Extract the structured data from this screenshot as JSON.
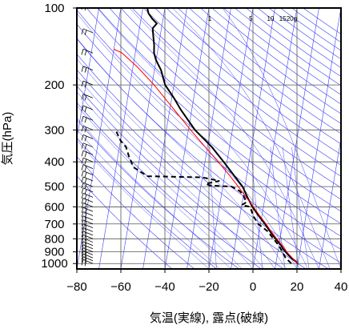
{
  "chart_data": {
    "type": "line",
    "title": "",
    "xlabel": "気温(実線), 露点(破線)",
    "ylabel": "気圧(hPa)",
    "xlim": [
      -80,
      40
    ],
    "ylim_hpa": [
      1050,
      100
    ],
    "y_scale": "log",
    "x_ticks": [
      {
        "value": -80,
        "label": "−80"
      },
      {
        "value": -60,
        "label": "−60"
      },
      {
        "value": -40,
        "label": "−40"
      },
      {
        "value": -20,
        "label": "−20"
      },
      {
        "value": 0,
        "label": "0"
      },
      {
        "value": 20,
        "label": "20"
      },
      {
        "value": 40,
        "label": "40"
      }
    ],
    "y_ticks": [
      {
        "value": 100,
        "label": "100"
      },
      {
        "value": 200,
        "label": "200"
      },
      {
        "value": 300,
        "label": "300"
      },
      {
        "value": 400,
        "label": "400"
      },
      {
        "value": 500,
        "label": "500"
      },
      {
        "value": 600,
        "label": "600"
      },
      {
        "value": 700,
        "label": "700"
      },
      {
        "value": 800,
        "label": "800"
      },
      {
        "value": 900,
        "label": "900"
      },
      {
        "value": 1000,
        "label": "1000"
      }
    ],
    "mixing_ratio_labels": [
      {
        "value": 1,
        "label": "1"
      },
      {
        "value": 5,
        "label": "5"
      },
      {
        "value": 10,
        "label": "10"
      },
      {
        "value": 15,
        "label": "15"
      },
      {
        "value": 20,
        "label": "20g"
      }
    ],
    "series": [
      {
        "kind": "temperature",
        "style": "solid",
        "color": "#000000",
        "points": [
          {
            "p": 1000,
            "t": 20
          },
          {
            "p": 975,
            "t": 18.5
          },
          {
            "p": 950,
            "t": 16.5
          },
          {
            "p": 925,
            "t": 15
          },
          {
            "p": 900,
            "t": 13.5
          },
          {
            "p": 875,
            "t": 12
          },
          {
            "p": 850,
            "t": 11
          },
          {
            "p": 800,
            "t": 8
          },
          {
            "p": 750,
            "t": 5
          },
          {
            "p": 700,
            "t": 2
          },
          {
            "p": 650,
            "t": -1.5
          },
          {
            "p": 600,
            "t": -5
          },
          {
            "p": 550,
            "t": -8
          },
          {
            "p": 500,
            "t": -11
          },
          {
            "p": 450,
            "t": -16
          },
          {
            "p": 400,
            "t": -21.5
          },
          {
            "p": 350,
            "t": -28
          },
          {
            "p": 300,
            "t": -37
          },
          {
            "p": 250,
            "t": -45
          },
          {
            "p": 225,
            "t": -49
          },
          {
            "p": 200,
            "t": -54
          },
          {
            "p": 175,
            "t": -57
          },
          {
            "p": 160,
            "t": -60
          },
          {
            "p": 150,
            "t": -61.5
          },
          {
            "p": 140,
            "t": -62
          },
          {
            "p": 130,
            "t": -63
          },
          {
            "p": 120,
            "t": -64
          },
          {
            "p": 115,
            "t": -62.5
          },
          {
            "p": 110,
            "t": -65
          },
          {
            "p": 105,
            "t": -67
          },
          {
            "p": 100,
            "t": -68
          }
        ]
      },
      {
        "kind": "dewpoint",
        "style": "dashed",
        "color": "#000000",
        "points": [
          {
            "p": 1000,
            "t": 17
          },
          {
            "p": 950,
            "t": 14
          },
          {
            "p": 900,
            "t": 12
          },
          {
            "p": 850,
            "t": 10
          },
          {
            "p": 800,
            "t": 7
          },
          {
            "p": 750,
            "t": 4
          },
          {
            "p": 700,
            "t": -1
          },
          {
            "p": 650,
            "t": -4
          },
          {
            "p": 600,
            "t": -6
          },
          {
            "p": 590,
            "t": -10
          },
          {
            "p": 575,
            "t": -8
          },
          {
            "p": 560,
            "t": -9
          },
          {
            "p": 540,
            "t": -10
          },
          {
            "p": 520,
            "t": -12
          },
          {
            "p": 500,
            "t": -16
          },
          {
            "p": 495,
            "t": -26
          },
          {
            "p": 487,
            "t": -28
          },
          {
            "p": 475,
            "t": -22
          },
          {
            "p": 460,
            "t": -30
          },
          {
            "p": 455,
            "t": -55
          },
          {
            "p": 420,
            "t": -62
          },
          {
            "p": 380,
            "t": -65
          },
          {
            "p": 350,
            "t": -67
          },
          {
            "p": 330,
            "t": -70
          },
          {
            "p": 310,
            "t": -72
          },
          {
            "p": 300,
            "t": -73
          }
        ]
      },
      {
        "kind": "parcel",
        "style": "solid",
        "color": "#ff0000",
        "points": [
          {
            "p": 1000,
            "t": 20
          },
          {
            "p": 950,
            "t": 17
          },
          {
            "p": 900,
            "t": 14
          },
          {
            "p": 850,
            "t": 11.5
          },
          {
            "p": 800,
            "t": 8.5
          },
          {
            "p": 750,
            "t": 5.5
          },
          {
            "p": 700,
            "t": 2.5
          },
          {
            "p": 650,
            "t": -1
          },
          {
            "p": 600,
            "t": -4.5
          },
          {
            "p": 550,
            "t": -8.5
          },
          {
            "p": 500,
            "t": -13
          },
          {
            "p": 450,
            "t": -18
          },
          {
            "p": 400,
            "t": -24
          },
          {
            "p": 350,
            "t": -31
          },
          {
            "p": 300,
            "t": -39
          },
          {
            "p": 250,
            "t": -48
          },
          {
            "p": 200,
            "t": -59
          },
          {
            "p": 170,
            "t": -68
          },
          {
            "p": 150,
            "t": -76
          },
          {
            "p": 145,
            "t": -80
          }
        ]
      }
    ],
    "wind_barbs_levels": [
      1000,
      975,
      950,
      925,
      900,
      875,
      850,
      825,
      800,
      775,
      750,
      725,
      700,
      675,
      650,
      625,
      600,
      575,
      550,
      525,
      500,
      475,
      450,
      425,
      400,
      375,
      350,
      325,
      300,
      275,
      250,
      225,
      200,
      175,
      150,
      125,
      100
    ],
    "grid": true,
    "colors": {
      "axes": "#000000",
      "isotherm": "#3a3aff",
      "adiabat": "#3a3aff",
      "mixing_ratio": "#3a3aff",
      "parcel": "#ff0000",
      "observations": "#000000"
    }
  }
}
